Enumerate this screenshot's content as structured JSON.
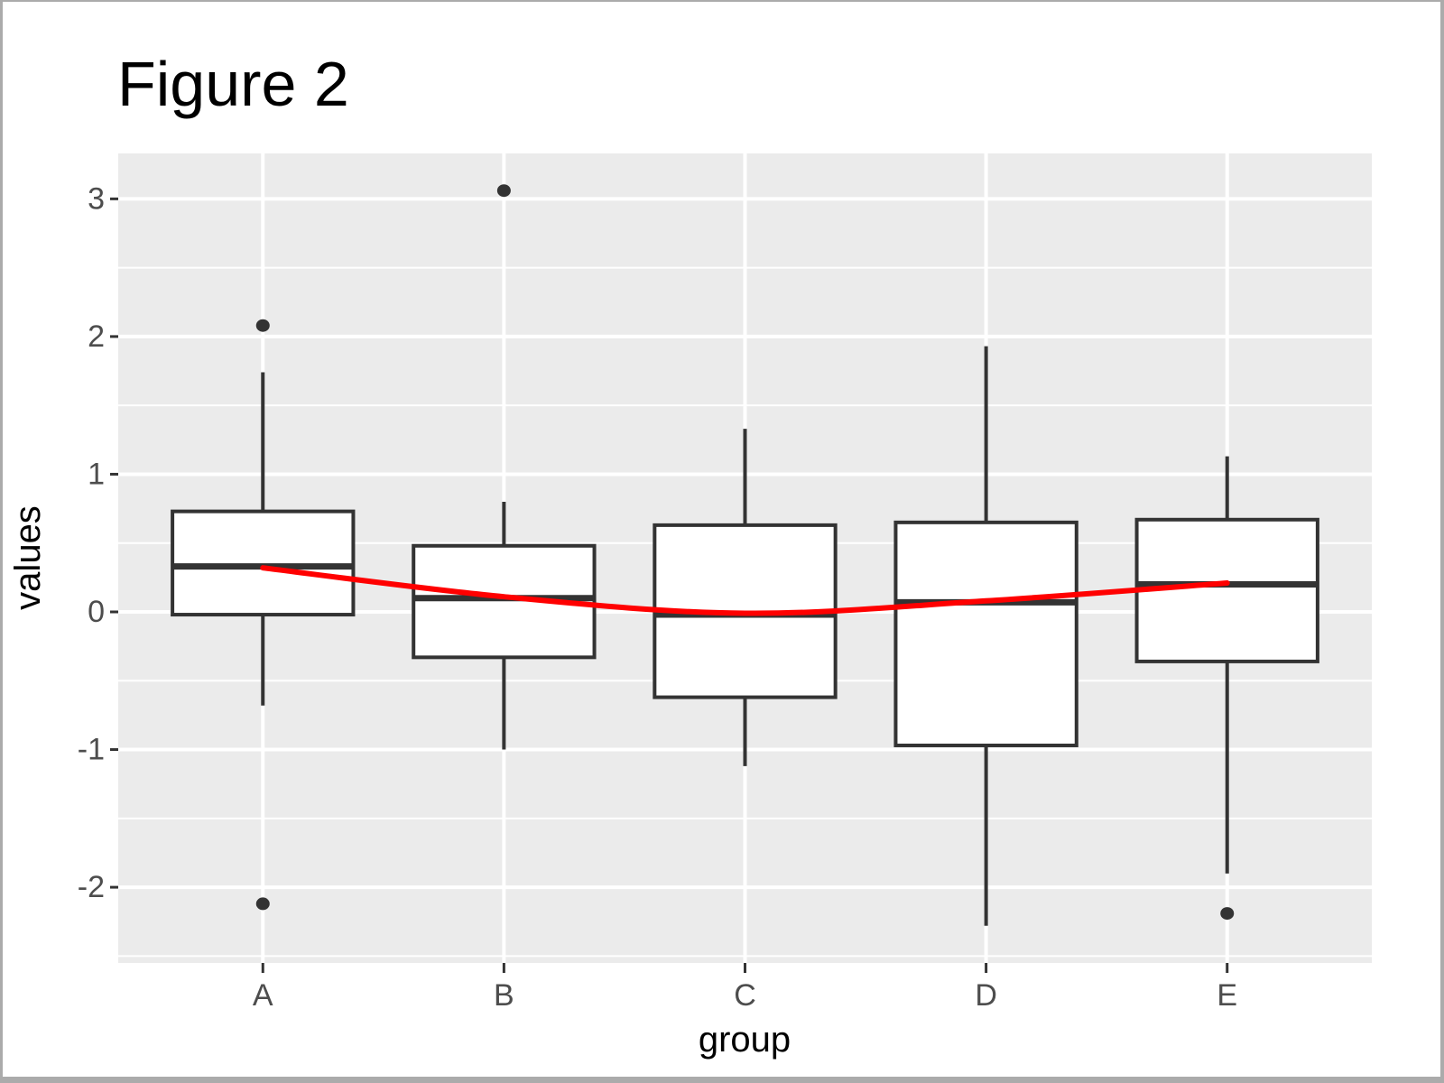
{
  "title": "Figure 2",
  "chart_data": {
    "type": "boxplot",
    "title": "Figure 2",
    "xlabel": "group",
    "ylabel": "values",
    "categories": [
      "A",
      "B",
      "C",
      "D",
      "E"
    ],
    "y_ticks": [
      3,
      2,
      1,
      0,
      -1,
      -2
    ],
    "y_minor_ticks": [
      2.5,
      1.5,
      0.5,
      -0.5,
      -1.5,
      -2.5
    ],
    "ylim": [
      -2.55,
      3.33
    ],
    "grid": "major-and-minor-horizontal, major-vertical, white on gray panel",
    "legend": "none",
    "boxes": [
      {
        "group": "A",
        "lower_whisker": -0.68,
        "q1": -0.02,
        "median": 0.33,
        "q3": 0.73,
        "upper_whisker": 1.74,
        "outliers": [
          2.08,
          -2.12
        ]
      },
      {
        "group": "B",
        "lower_whisker": -1.0,
        "q1": -0.33,
        "median": 0.1,
        "q3": 0.48,
        "upper_whisker": 0.8,
        "outliers": [
          3.06
        ]
      },
      {
        "group": "C",
        "lower_whisker": -1.12,
        "q1": -0.62,
        "median": -0.02,
        "q3": 0.63,
        "upper_whisker": 1.33,
        "outliers": []
      },
      {
        "group": "D",
        "lower_whisker": -2.28,
        "q1": -0.97,
        "median": 0.07,
        "q3": 0.65,
        "upper_whisker": 1.93,
        "outliers": []
      },
      {
        "group": "E",
        "lower_whisker": -1.9,
        "q1": -0.36,
        "median": 0.2,
        "q3": 0.67,
        "upper_whisker": 1.13,
        "outliers": [
          -2.19
        ]
      }
    ],
    "smooth_line": {
      "name": "red smooth trend line",
      "points": [
        {
          "x": "A",
          "y": 0.32
        },
        {
          "x": "B",
          "y": 0.11
        },
        {
          "x": "C",
          "y": -0.01
        },
        {
          "x": "D",
          "y": 0.08
        },
        {
          "x": "E",
          "y": 0.21
        }
      ]
    },
    "colors": {
      "panel_bg": "#ebebeb",
      "gridline": "#ffffff",
      "box_stroke": "#333333",
      "box_fill": "#ffffff",
      "median": "#333333",
      "outlier": "#333333",
      "smooth_line": "#ff0000",
      "axis_text": "#4d4d4d",
      "title_text": "#000000",
      "frame_border": "#ababab"
    }
  }
}
